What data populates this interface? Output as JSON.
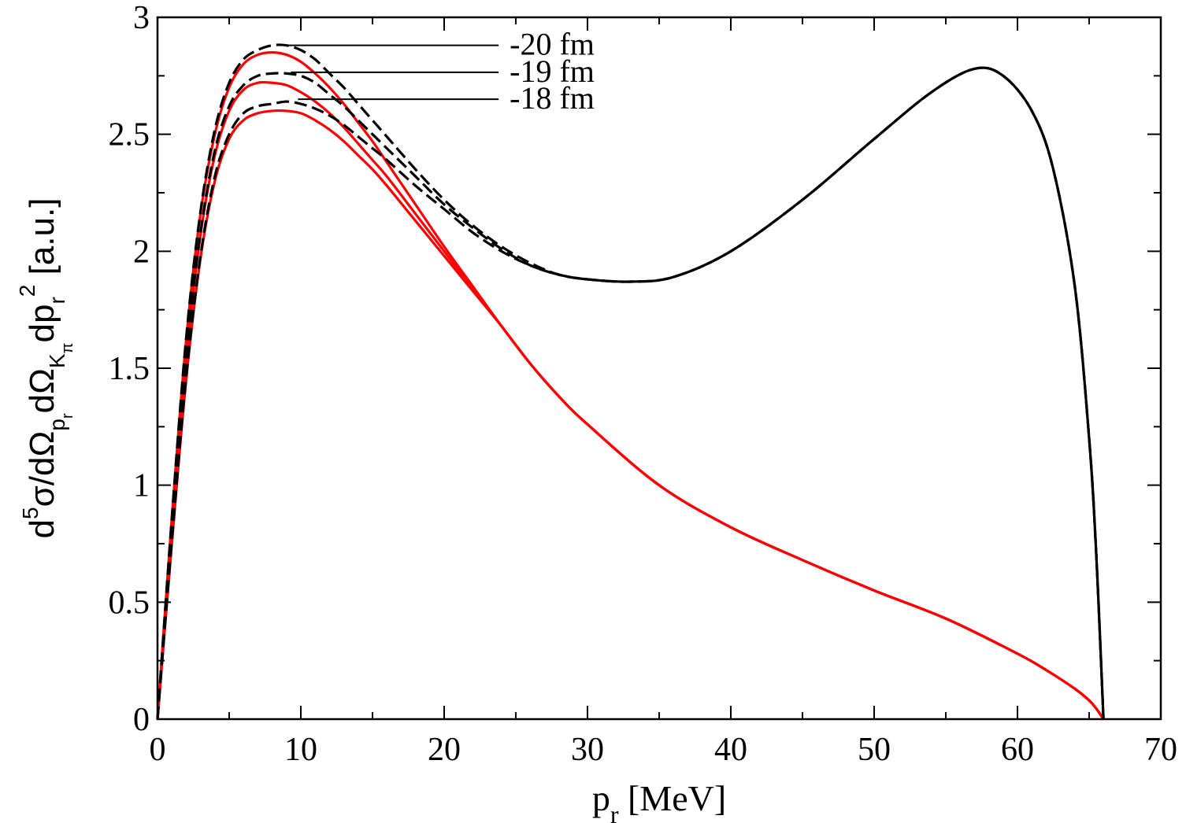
{
  "chart_data": {
    "type": "line",
    "xlabel": {
      "main": "p",
      "sub": "r",
      "rest": " [MeV]"
    },
    "ylabel": {
      "p1": "d",
      "sup1": "5",
      "p2": "σ/dΩ",
      "sub1": "p",
      "subsub1": "r",
      "p3": "dΩ",
      "sub2": "K",
      "subsub2": "π",
      "p4": "dp",
      "sub3": "r",
      "sup2": "2",
      "p5": " [a.u.]"
    },
    "xlim": [
      0,
      70
    ],
    "ylim": [
      0,
      3
    ],
    "xticks": [
      0,
      10,
      20,
      30,
      40,
      50,
      60,
      70
    ],
    "xtick_labels": [
      "0",
      "10",
      "20",
      "30",
      "40",
      "50",
      "60",
      "70"
    ],
    "yticks": [
      0,
      0.5,
      1,
      1.5,
      2,
      2.5,
      3
    ],
    "ytick_labels": [
      "0",
      "0.5",
      "1",
      "1.5",
      "2",
      "2.5",
      "3"
    ],
    "grid": false,
    "annotations": [
      {
        "text": "-20 fm",
        "y": 2.88,
        "x_start": 9.0,
        "x_end": 23.8
      },
      {
        "text": "-19 fm",
        "y": 2.765,
        "x_start": 9.3,
        "x_end": 23.8
      },
      {
        "text": "-18 fm",
        "y": 2.65,
        "x_start": 9.8,
        "x_end": 23.8
      }
    ],
    "series": [
      {
        "color": "#ff0000",
        "dash": "solid",
        "x": [
          0,
          1,
          2,
          3,
          4,
          5,
          6,
          7,
          8,
          9,
          10,
          11,
          12,
          13,
          14,
          15,
          16,
          18,
          20,
          22,
          24,
          26,
          28,
          30,
          35,
          40,
          45,
          50,
          55,
          60,
          62,
          64,
          65,
          65.5,
          66
        ],
        "y": [
          0,
          0.86,
          1.62,
          2.16,
          2.5,
          2.7,
          2.8,
          2.84,
          2.85,
          2.84,
          2.81,
          2.76,
          2.7,
          2.63,
          2.55,
          2.47,
          2.38,
          2.2,
          2.02,
          1.85,
          1.68,
          1.52,
          1.38,
          1.26,
          1.0,
          0.82,
          0.68,
          0.55,
          0.43,
          0.28,
          0.21,
          0.13,
          0.08,
          0.045,
          0
        ]
      },
      {
        "color": "#ff0000",
        "dash": "solid",
        "x": [
          0,
          1,
          2,
          3,
          4,
          5,
          6,
          7,
          8,
          9,
          10,
          11,
          12,
          13,
          14,
          15,
          16,
          18,
          20,
          22,
          24,
          26,
          28,
          30,
          35,
          40,
          45,
          50,
          55,
          60,
          62,
          64,
          65,
          65.5,
          66
        ],
        "y": [
          0,
          0.81,
          1.54,
          2.07,
          2.41,
          2.6,
          2.69,
          2.72,
          2.72,
          2.71,
          2.68,
          2.64,
          2.59,
          2.53,
          2.46,
          2.39,
          2.32,
          2.16,
          2.0,
          1.84,
          1.68,
          1.52,
          1.38,
          1.26,
          1.0,
          0.82,
          0.68,
          0.55,
          0.43,
          0.28,
          0.21,
          0.13,
          0.08,
          0.045,
          0
        ]
      },
      {
        "color": "#ff0000",
        "dash": "solid",
        "x": [
          0,
          1,
          2,
          3,
          4,
          5,
          6,
          7,
          8,
          9,
          10,
          11,
          12,
          13,
          14,
          15,
          16,
          18,
          20,
          22,
          24,
          26,
          28,
          30,
          35,
          40,
          45,
          50,
          55,
          60,
          62,
          64,
          65,
          65.5,
          66
        ],
        "y": [
          0,
          0.75,
          1.45,
          1.97,
          2.3,
          2.48,
          2.56,
          2.59,
          2.6,
          2.6,
          2.59,
          2.56,
          2.52,
          2.47,
          2.41,
          2.35,
          2.28,
          2.13,
          1.98,
          1.83,
          1.68,
          1.52,
          1.38,
          1.26,
          1.0,
          0.82,
          0.68,
          0.55,
          0.43,
          0.28,
          0.21,
          0.13,
          0.08,
          0.045,
          0
        ]
      },
      {
        "color": "#000000",
        "dash": "dashed",
        "x": [
          0,
          1,
          2,
          3,
          4,
          5,
          6,
          7,
          8,
          9,
          10,
          11,
          12,
          13,
          14,
          15,
          16,
          18,
          20,
          22,
          24,
          26,
          28,
          30,
          33,
          36,
          40,
          45,
          50,
          54,
          57,
          59,
          61,
          62.5,
          64,
          65,
          65.5,
          66
        ],
        "y": [
          0,
          0.86,
          1.63,
          2.17,
          2.52,
          2.72,
          2.82,
          2.86,
          2.88,
          2.88,
          2.86,
          2.82,
          2.76,
          2.7,
          2.63,
          2.56,
          2.49,
          2.35,
          2.22,
          2.11,
          2.02,
          1.95,
          1.9,
          1.88,
          1.87,
          1.89,
          2.0,
          2.22,
          2.48,
          2.68,
          2.78,
          2.75,
          2.6,
          2.35,
          1.85,
          1.2,
          0.7,
          0
        ]
      },
      {
        "color": "#000000",
        "dash": "dashed",
        "x": [
          0,
          1,
          2,
          3,
          4,
          5,
          6,
          7,
          8,
          9,
          10,
          11,
          12,
          13,
          14,
          15,
          16,
          18,
          20,
          22,
          24,
          26,
          28,
          30,
          33,
          36,
          40,
          45,
          50,
          54,
          57,
          59,
          61,
          62.5,
          64,
          65,
          65.5,
          66
        ],
        "y": [
          0,
          0.81,
          1.55,
          2.08,
          2.43,
          2.62,
          2.71,
          2.75,
          2.76,
          2.76,
          2.75,
          2.72,
          2.67,
          2.62,
          2.56,
          2.5,
          2.44,
          2.32,
          2.2,
          2.1,
          2.01,
          1.94,
          1.9,
          1.88,
          1.87,
          1.89,
          2.0,
          2.22,
          2.48,
          2.68,
          2.78,
          2.75,
          2.6,
          2.35,
          1.85,
          1.2,
          0.7,
          0
        ]
      },
      {
        "color": "#000000",
        "dash": "dashed",
        "x": [
          0,
          1,
          2,
          3,
          4,
          5,
          6,
          7,
          8,
          9,
          10,
          11,
          12,
          13,
          14,
          15,
          16,
          18,
          20,
          22,
          24,
          26,
          28,
          30,
          33,
          36,
          40,
          45,
          50,
          54,
          57,
          59,
          61,
          62.5,
          64,
          65,
          65.5,
          66
        ],
        "y": [
          0,
          0.76,
          1.46,
          1.98,
          2.32,
          2.5,
          2.59,
          2.62,
          2.63,
          2.64,
          2.63,
          2.61,
          2.58,
          2.54,
          2.49,
          2.44,
          2.39,
          2.28,
          2.18,
          2.08,
          2.0,
          1.94,
          1.9,
          1.88,
          1.87,
          1.89,
          2.0,
          2.22,
          2.48,
          2.68,
          2.78,
          2.75,
          2.6,
          2.35,
          1.85,
          1.2,
          0.7,
          0
        ]
      }
    ]
  }
}
